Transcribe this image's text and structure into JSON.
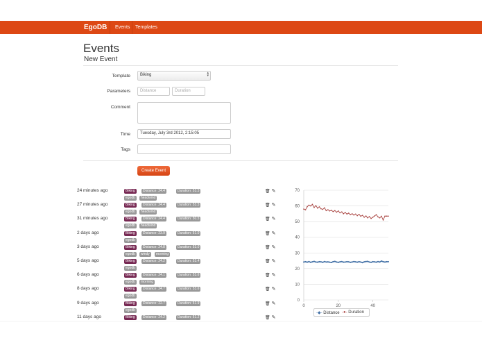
{
  "navbar": {
    "brand": "EgoDB",
    "links": [
      "Events",
      "Templates"
    ],
    "bg": "#dd4814"
  },
  "page": {
    "title": "Events",
    "subtitle": "New Event"
  },
  "form": {
    "template_label": "Template",
    "template_value": "Biking",
    "parameters_label": "Parameters",
    "param1_placeholder": "Distance",
    "param2_placeholder": "Duration",
    "comment_label": "Comment",
    "time_label": "Time",
    "time_value": "Tuesday, July 3rd 2012, 2:15:05",
    "tags_label": "Tags",
    "submit_label": "Create Event"
  },
  "events": [
    {
      "time": "24 minutes ago",
      "tags": [
        "Biking",
        "Distance: 24.4",
        "Duration: 53.5",
        "egodb",
        "headwind"
      ]
    },
    {
      "time": "27 minutes ago",
      "tags": [
        "Biking",
        "Distance: 24.4",
        "Duration: 53.5",
        "egodb",
        "headwind"
      ]
    },
    {
      "time": "31 minutes ago",
      "tags": [
        "Biking",
        "Distance: 24.4",
        "Duration: 50.5",
        "egodb",
        "headwind"
      ]
    },
    {
      "time": "2 days ago",
      "tags": [
        "Biking",
        "Distance: 23.9",
        "Duration: 51.0",
        "egodb"
      ]
    },
    {
      "time": "3 days ago",
      "tags": [
        "Biking",
        "Distance: 24.8",
        "Duration: 53.0",
        "egodb",
        "windy",
        "morning"
      ]
    },
    {
      "time": "5 days ago",
      "tags": [
        "Biking",
        "Distance: 24.2",
        "Duration: 53.4",
        "egodb"
      ]
    },
    {
      "time": "6 days ago",
      "tags": [
        "Biking",
        "Distance: 24.1",
        "Duration: 53.6",
        "egodb",
        "morning"
      ]
    },
    {
      "time": "8 days ago",
      "tags": [
        "Biking",
        "Distance: 24.7",
        "Duration: 53.6",
        "egodb"
      ]
    },
    {
      "time": "9 days ago",
      "tags": [
        "Biking",
        "Distance: 22.7",
        "Duration: 51.9",
        "egodb"
      ]
    },
    {
      "time": "11 days ago",
      "tags": [
        "Biking",
        "Distance: 24.2",
        "Duration: 51.2"
      ]
    }
  ],
  "row_icons": [
    "trash-icon",
    "edit-icon"
  ],
  "chart_data": {
    "type": "line",
    "x": [
      0,
      1,
      2,
      3,
      4,
      5,
      6,
      7,
      8,
      9,
      10,
      11,
      12,
      13,
      14,
      15,
      16,
      17,
      18,
      19,
      20,
      21,
      22,
      23,
      24,
      25,
      26,
      27,
      28,
      29,
      30,
      31,
      32,
      33,
      34,
      35,
      36,
      37,
      38,
      39,
      40,
      41,
      42,
      43,
      44,
      45,
      46,
      47,
      48,
      49
    ],
    "xticks": [
      0,
      20,
      40
    ],
    "yticks": [
      0,
      10,
      20,
      30,
      40,
      50,
      60,
      70
    ],
    "ylim": [
      0,
      70
    ],
    "xlim": [
      0,
      49
    ],
    "grid": true,
    "legend_position": "bottom",
    "series": [
      {
        "name": "Distance",
        "color": "#4572a7",
        "values": [
          24.2,
          24.4,
          24.1,
          24.5,
          24.0,
          24.3,
          24.6,
          24.2,
          24.1,
          24.4,
          24.3,
          24.0,
          24.5,
          24.2,
          24.3,
          24.1,
          23.9,
          24.4,
          24.6,
          24.2,
          24.0,
          24.3,
          24.5,
          24.1,
          24.2,
          24.4,
          24.3,
          24.0,
          24.2,
          24.5,
          24.3,
          24.1,
          24.4,
          24.2,
          23.8,
          24.3,
          24.5,
          24.6,
          24.2,
          24.0,
          24.4,
          24.3,
          24.1,
          24.5,
          24.2,
          24.8,
          24.4,
          24.2,
          24.4,
          24.4
        ]
      },
      {
        "name": "Duration",
        "color": "#aa4643",
        "values": [
          58.0,
          57.5,
          59.5,
          60.5,
          60.0,
          61.0,
          59.0,
          60.2,
          58.6,
          59.4,
          58.2,
          57.8,
          58.8,
          57.0,
          57.6,
          56.8,
          57.2,
          56.4,
          57.0,
          56.0,
          56.8,
          55.6,
          56.2,
          55.0,
          55.8,
          54.8,
          55.4,
          54.4,
          55.0,
          54.2,
          54.8,
          53.8,
          54.6,
          53.4,
          54.0,
          52.8,
          53.6,
          52.4,
          53.2,
          52.0,
          52.8,
          53.6,
          54.4,
          53.0,
          52.4,
          53.4,
          51.0,
          53.5,
          53.5,
          53.5
        ]
      }
    ]
  }
}
